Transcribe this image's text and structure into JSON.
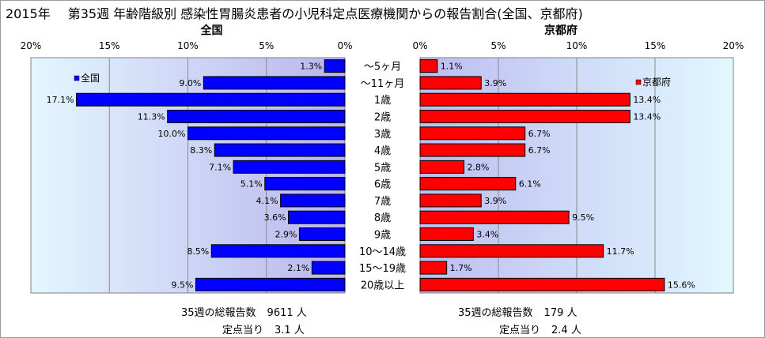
{
  "title": {
    "year": "2015年",
    "text": "第35週 年齢階級別 感染性胃腸炎患者の小児科定点医療機関からの報告割合(全国、京都府)"
  },
  "chart_data": {
    "type": "bar",
    "categories": [
      "～5ヶ月",
      "～11ヶ月",
      "1歳",
      "2歳",
      "3歳",
      "4歳",
      "5歳",
      "6歳",
      "7歳",
      "8歳",
      "9歳",
      "10～14歳",
      "15～19歳",
      "20歳以上"
    ],
    "unit": "%",
    "xlim": [
      0,
      20
    ],
    "ticks": [
      "0%",
      "5%",
      "10%",
      "15%",
      "20%"
    ],
    "grid": true,
    "series": [
      {
        "name": "全国",
        "heading": "全国",
        "legend": "全国",
        "legend_position": "top-left",
        "color": "#0000ff",
        "values": [
          1.3,
          9.0,
          17.1,
          11.3,
          10.0,
          8.3,
          7.1,
          5.1,
          4.1,
          3.6,
          2.9,
          8.5,
          2.1,
          9.5
        ],
        "labels": [
          "1.3%",
          "9.0%",
          "17.1%",
          "11.3%",
          "10.0%",
          "8.3%",
          "7.1%",
          "5.1%",
          "4.1%",
          "3.6%",
          "2.9%",
          "8.5%",
          "2.1%",
          "9.5%"
        ]
      },
      {
        "name": "京都府",
        "heading": "京都府",
        "legend": "京都府",
        "legend_position": "top-right",
        "color": "#ff0000",
        "values": [
          1.1,
          3.9,
          13.4,
          13.4,
          6.7,
          6.7,
          2.8,
          6.1,
          3.9,
          9.5,
          3.4,
          11.7,
          1.7,
          15.6
        ],
        "labels": [
          "1.1%",
          "3.9%",
          "13.4%",
          "13.4%",
          "6.7%",
          "6.7%",
          "2.8%",
          "6.1%",
          "3.9%",
          "9.5%",
          "3.4%",
          "11.7%",
          "1.7%",
          "15.6%"
        ]
      }
    ]
  },
  "footer": {
    "national": {
      "total_label": "35週の総報告数",
      "total_value": "9611 人",
      "per_label": "定点当り",
      "per_value": "3.1 人"
    },
    "kyoto": {
      "total_label": "35週の総報告数",
      "total_value": "179 人",
      "per_label": "定点当り",
      "per_value": "2.4 人"
    }
  }
}
